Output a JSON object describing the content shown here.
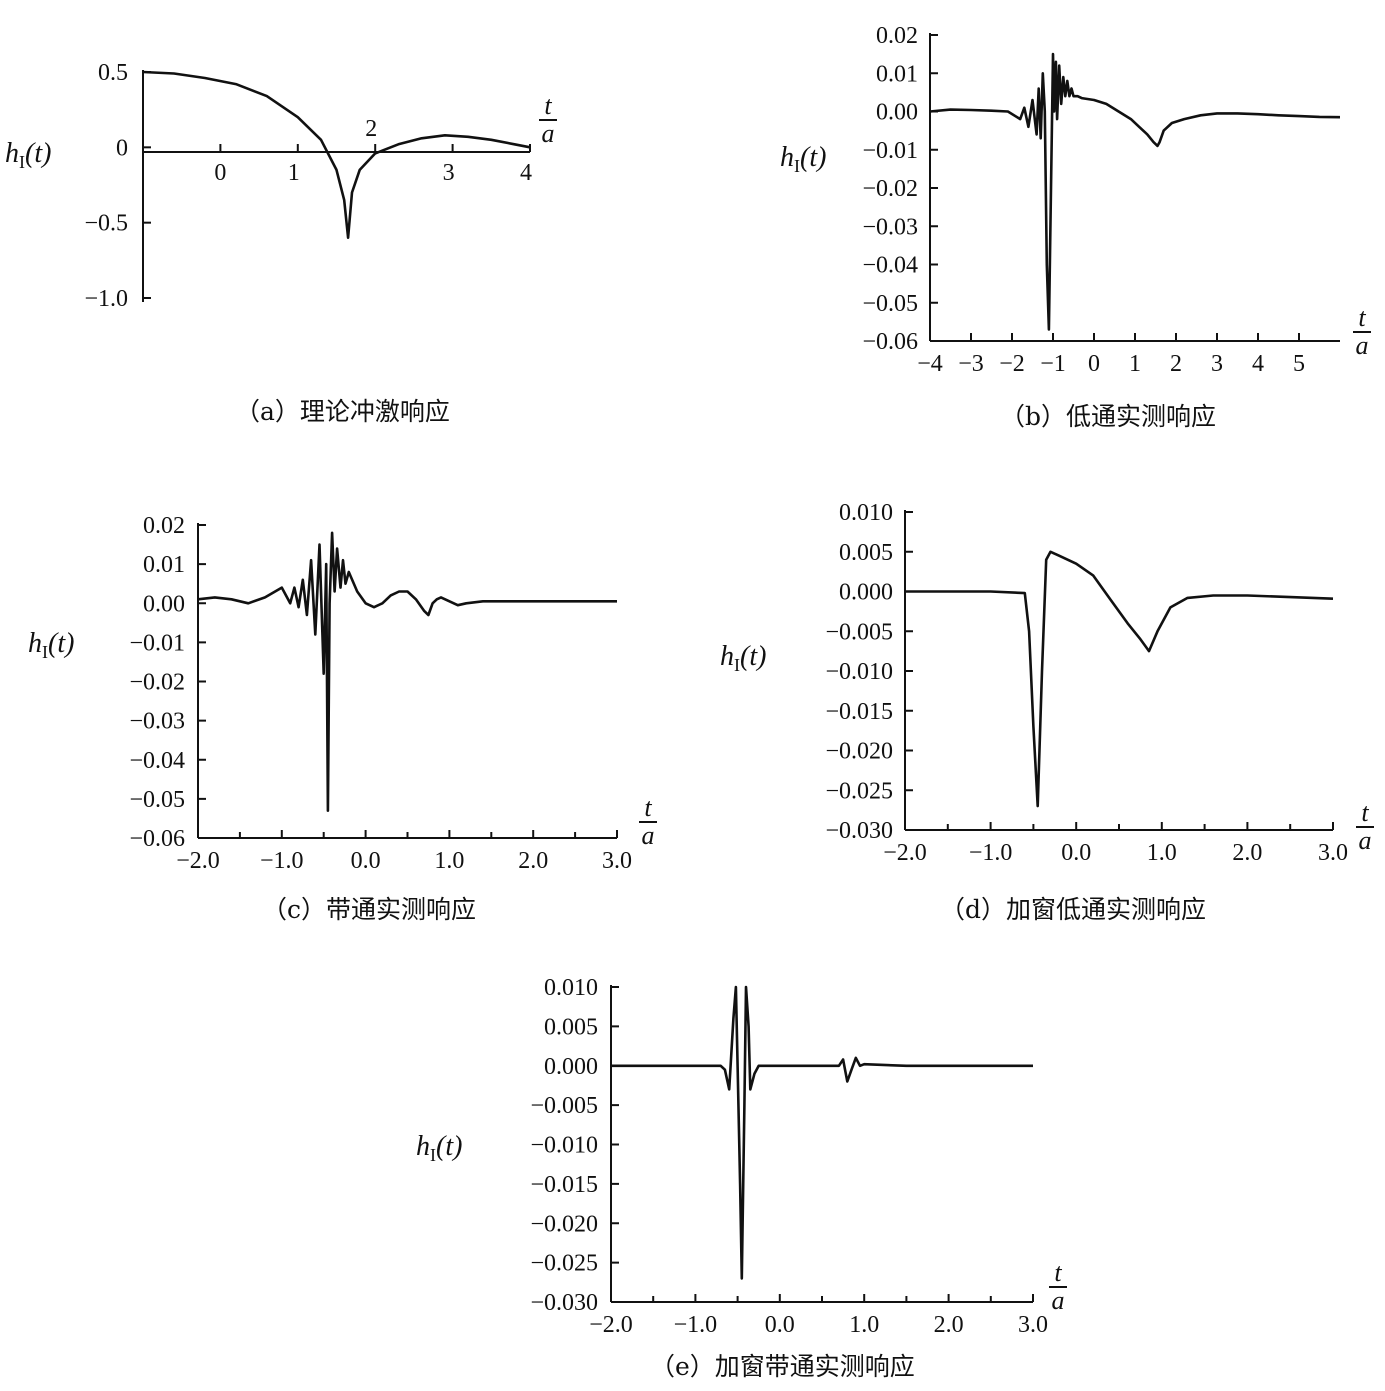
{
  "chart_data": [
    {
      "id": "a",
      "type": "line",
      "caption": "（a）理论冲激响应",
      "ylabel": "h_I(t)",
      "xlabel_top": "t",
      "xlabel_bottom": "a",
      "yticks": [
        "0.5",
        "0",
        "−0.5",
        "−1.0"
      ],
      "xticks": [
        "0",
        "1",
        "2",
        "3",
        "4"
      ],
      "ylim": [
        -1.0,
        0.5
      ],
      "xlim": [
        -1.0,
        4.0
      ],
      "series": [
        {
          "x": [
            -1.0,
            -0.6,
            -0.2,
            0.2,
            0.6,
            1.0,
            1.3,
            1.5,
            1.6,
            1.65,
            1.7,
            1.8,
            2.0,
            2.3,
            2.6,
            2.9,
            3.2,
            3.5,
            3.8,
            4.0
          ],
          "y": [
            0.5,
            0.49,
            0.46,
            0.42,
            0.34,
            0.2,
            0.05,
            -0.15,
            -0.35,
            -0.6,
            -0.3,
            -0.15,
            -0.04,
            0.02,
            0.06,
            0.08,
            0.07,
            0.05,
            0.02,
            0.0
          ]
        }
      ]
    },
    {
      "id": "b",
      "type": "line",
      "caption": "（b）低通实测响应",
      "ylabel": "h_I(t)",
      "xlabel_top": "t",
      "xlabel_bottom": "a",
      "yticks": [
        "0.02",
        "0.01",
        "0.00",
        "−0.01",
        "−0.02",
        "−0.03",
        "−0.04",
        "−0.05",
        "−0.06"
      ],
      "xticks": [
        "−4",
        "−3",
        "−2",
        "−1",
        "0",
        "1",
        "2",
        "3",
        "4",
        "5"
      ],
      "ylim": [
        -0.06,
        0.02
      ],
      "xlim": [
        -4.0,
        6.0
      ],
      "series": [
        {
          "x": [
            -4.0,
            -3.5,
            -3.0,
            -2.5,
            -2.1,
            -1.8,
            -1.7,
            -1.6,
            -1.5,
            -1.4,
            -1.35,
            -1.3,
            -1.25,
            -1.2,
            -1.15,
            -1.1,
            -1.05,
            -1.0,
            -0.97,
            -0.93,
            -0.9,
            -0.85,
            -0.8,
            -0.75,
            -0.7,
            -0.65,
            -0.6,
            -0.55,
            -0.5,
            -0.4,
            -0.3,
            0.0,
            0.3,
            0.6,
            0.9,
            1.1,
            1.3,
            1.45,
            1.55,
            1.6,
            1.7,
            1.9,
            2.2,
            2.6,
            3.0,
            3.5,
            4.0,
            4.5,
            5.0,
            5.5,
            6.0
          ],
          "y": [
            0.0,
            0.0005,
            0.0004,
            0.0002,
            0.0,
            -0.002,
            0.001,
            -0.004,
            0.003,
            -0.006,
            0.006,
            -0.007,
            0.01,
            0.0,
            -0.04,
            -0.057,
            -0.02,
            0.015,
            0.0,
            0.013,
            -0.002,
            0.012,
            0.002,
            0.009,
            0.004,
            0.008,
            0.004,
            0.006,
            0.004,
            0.004,
            0.0035,
            0.003,
            0.002,
            0.0,
            -0.002,
            -0.004,
            -0.006,
            -0.008,
            -0.009,
            -0.008,
            -0.005,
            -0.003,
            -0.002,
            -0.001,
            -0.0005,
            -0.0005,
            -0.0007,
            -0.001,
            -0.0012,
            -0.0014,
            -0.0015
          ]
        }
      ]
    },
    {
      "id": "c",
      "type": "line",
      "caption": "（c）带通实测响应",
      "ylabel": "h_I(t)",
      "xlabel_top": "t",
      "xlabel_bottom": "a",
      "yticks": [
        "0.02",
        "0.01",
        "0.00",
        "−0.01",
        "−0.02",
        "−0.03",
        "−0.04",
        "−0.05",
        "−0.06"
      ],
      "xticks": [
        "−2.0",
        "−1.0",
        "0.0",
        "1.0",
        "2.0",
        "3.0"
      ],
      "ylim": [
        -0.06,
        0.02
      ],
      "xlim": [
        -2.0,
        3.0
      ],
      "series": [
        {
          "x": [
            -2.0,
            -1.8,
            -1.6,
            -1.4,
            -1.2,
            -1.0,
            -0.9,
            -0.85,
            -0.8,
            -0.75,
            -0.7,
            -0.65,
            -0.6,
            -0.55,
            -0.5,
            -0.47,
            -0.45,
            -0.43,
            -0.4,
            -0.37,
            -0.34,
            -0.3,
            -0.27,
            -0.24,
            -0.2,
            -0.1,
            0.0,
            0.1,
            0.2,
            0.3,
            0.4,
            0.5,
            0.6,
            0.7,
            0.75,
            0.8,
            0.85,
            0.9,
            1.0,
            1.1,
            1.2,
            1.4,
            1.6,
            2.0,
            2.5,
            3.0
          ],
          "y": [
            0.001,
            0.0015,
            0.001,
            0.0,
            0.0015,
            0.004,
            0.0,
            0.004,
            -0.001,
            0.006,
            -0.003,
            0.011,
            -0.008,
            0.015,
            -0.018,
            0.01,
            -0.053,
            0.0,
            0.018,
            0.003,
            0.014,
            0.004,
            0.011,
            0.005,
            0.008,
            0.003,
            0.0,
            -0.001,
            0.0,
            0.002,
            0.003,
            0.003,
            0.001,
            -0.002,
            -0.003,
            0.0,
            0.001,
            0.0015,
            0.0005,
            -0.0005,
            0.0,
            0.0005,
            0.0005,
            0.0005,
            0.0005,
            0.0005
          ]
        }
      ]
    },
    {
      "id": "d",
      "type": "line",
      "caption": "（d）加窗低通实测响应",
      "ylabel": "h_I(t)",
      "xlabel_top": "t",
      "xlabel_bottom": "a",
      "yticks": [
        "0.010",
        "0.005",
        "0.000",
        "−0.005",
        "−0.010",
        "−0.015",
        "−0.020",
        "−0.025",
        "−0.030"
      ],
      "xticks": [
        "−2.0",
        "−1.0",
        "0.0",
        "1.0",
        "2.0",
        "3.0"
      ],
      "ylim": [
        -0.03,
        0.01
      ],
      "xlim": [
        -2.0,
        3.0
      ],
      "series": [
        {
          "x": [
            -2.0,
            -1.5,
            -1.0,
            -0.6,
            -0.55,
            -0.5,
            -0.45,
            -0.4,
            -0.35,
            -0.3,
            -0.2,
            0.0,
            0.2,
            0.4,
            0.6,
            0.75,
            0.85,
            0.95,
            1.1,
            1.3,
            1.6,
            2.0,
            2.5,
            3.0
          ],
          "y": [
            0.0,
            0.0,
            0.0,
            -0.0002,
            -0.005,
            -0.017,
            -0.027,
            -0.01,
            0.004,
            0.005,
            0.0045,
            0.0035,
            0.002,
            -0.001,
            -0.004,
            -0.006,
            -0.0075,
            -0.005,
            -0.002,
            -0.0008,
            -0.0005,
            -0.0005,
            -0.0007,
            -0.0009
          ]
        }
      ]
    },
    {
      "id": "e",
      "type": "line",
      "caption": "（e）加窗带通实测响应",
      "ylabel": "h_I(t)",
      "xlabel_top": "t",
      "xlabel_bottom": "a",
      "yticks": [
        "0.010",
        "0.005",
        "0.000",
        "−0.005",
        "−0.010",
        "−0.015",
        "−0.020",
        "−0.025",
        "−0.030"
      ],
      "xticks": [
        "−2.0",
        "−1.0",
        "0.0",
        "1.0",
        "2.0",
        "3.0"
      ],
      "ylim": [
        -0.03,
        0.01
      ],
      "xlim": [
        -2.0,
        3.0
      ],
      "series": [
        {
          "x": [
            -2.0,
            -1.5,
            -1.0,
            -0.7,
            -0.65,
            -0.6,
            -0.55,
            -0.52,
            -0.5,
            -0.47,
            -0.45,
            -0.42,
            -0.4,
            -0.37,
            -0.35,
            -0.3,
            -0.25,
            -0.2,
            0.0,
            0.5,
            0.7,
            0.75,
            0.8,
            0.85,
            0.9,
            0.95,
            1.0,
            1.5,
            2.0,
            2.5,
            3.0
          ],
          "y": [
            0.0,
            0.0,
            0.0,
            0.0,
            -0.0005,
            -0.003,
            0.006,
            0.01,
            0.0,
            -0.015,
            -0.027,
            -0.005,
            0.01,
            0.005,
            -0.003,
            -0.001,
            0.0,
            0.0,
            0.0,
            0.0,
            0.0,
            0.0008,
            -0.002,
            -0.0005,
            0.001,
            0.0,
            0.0002,
            0.0,
            0.0,
            0.0,
            0.0
          ]
        }
      ]
    }
  ]
}
